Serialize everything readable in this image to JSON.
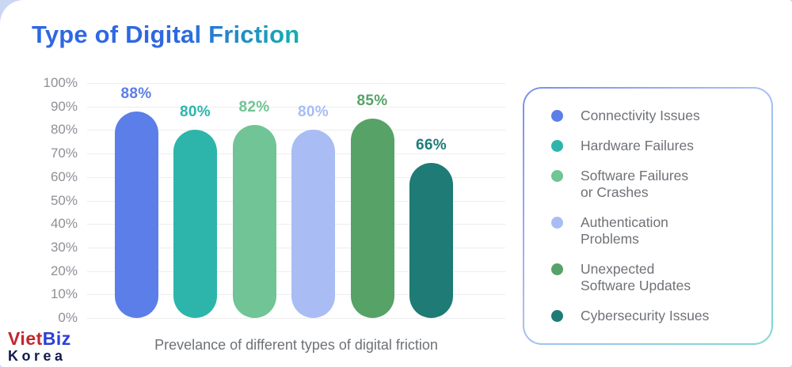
{
  "page_title": "Type of Digital Friction",
  "chart_data": {
    "type": "bar",
    "title": "Type of Digital Friction",
    "xlabel": "Prevelance of different types of digital friction",
    "ylabel": "",
    "ylim": [
      0,
      100
    ],
    "ytick_step": 10,
    "yticks": [
      "0%",
      "10%",
      "20%",
      "30%",
      "40%",
      "50%",
      "60%",
      "70%",
      "80%",
      "90%",
      "100%"
    ],
    "grid": true,
    "legend_position": "right",
    "categories": [
      "Connectivity Issues",
      "Hardware Failures",
      "Software Failures or Crashes",
      "Authentication Problems",
      "Unexpected Software Updates",
      "Cybersecurity Issues"
    ],
    "values": [
      88,
      80,
      82,
      80,
      85,
      66
    ],
    "value_labels": [
      "88%",
      "80%",
      "82%",
      "80%",
      "85%",
      "66%"
    ],
    "colors": [
      "#5b7ee8",
      "#2db5ac",
      "#70c495",
      "#a9bdf4",
      "#56a267",
      "#1e7b76"
    ],
    "legend_labels": [
      "Connectivity Issues",
      "Hardware Failures",
      "Software Failures\nor Crashes",
      "Authentication\nProblems",
      "Unexpected\nSoftware Updates",
      "Cybersecurity Issues"
    ]
  },
  "brand": {
    "part1": "Viet",
    "part2": "Biz",
    "part3": "Korea"
  },
  "theme": {
    "title_gradient_start": "#2e68e2",
    "title_gradient_end": "#15afae",
    "axis_text_color": "#8e9096",
    "label_text_color": "#6e7176",
    "gridline_color": "#ededed",
    "page_background": "#c9d7f2",
    "card_background": "#ffffff"
  }
}
